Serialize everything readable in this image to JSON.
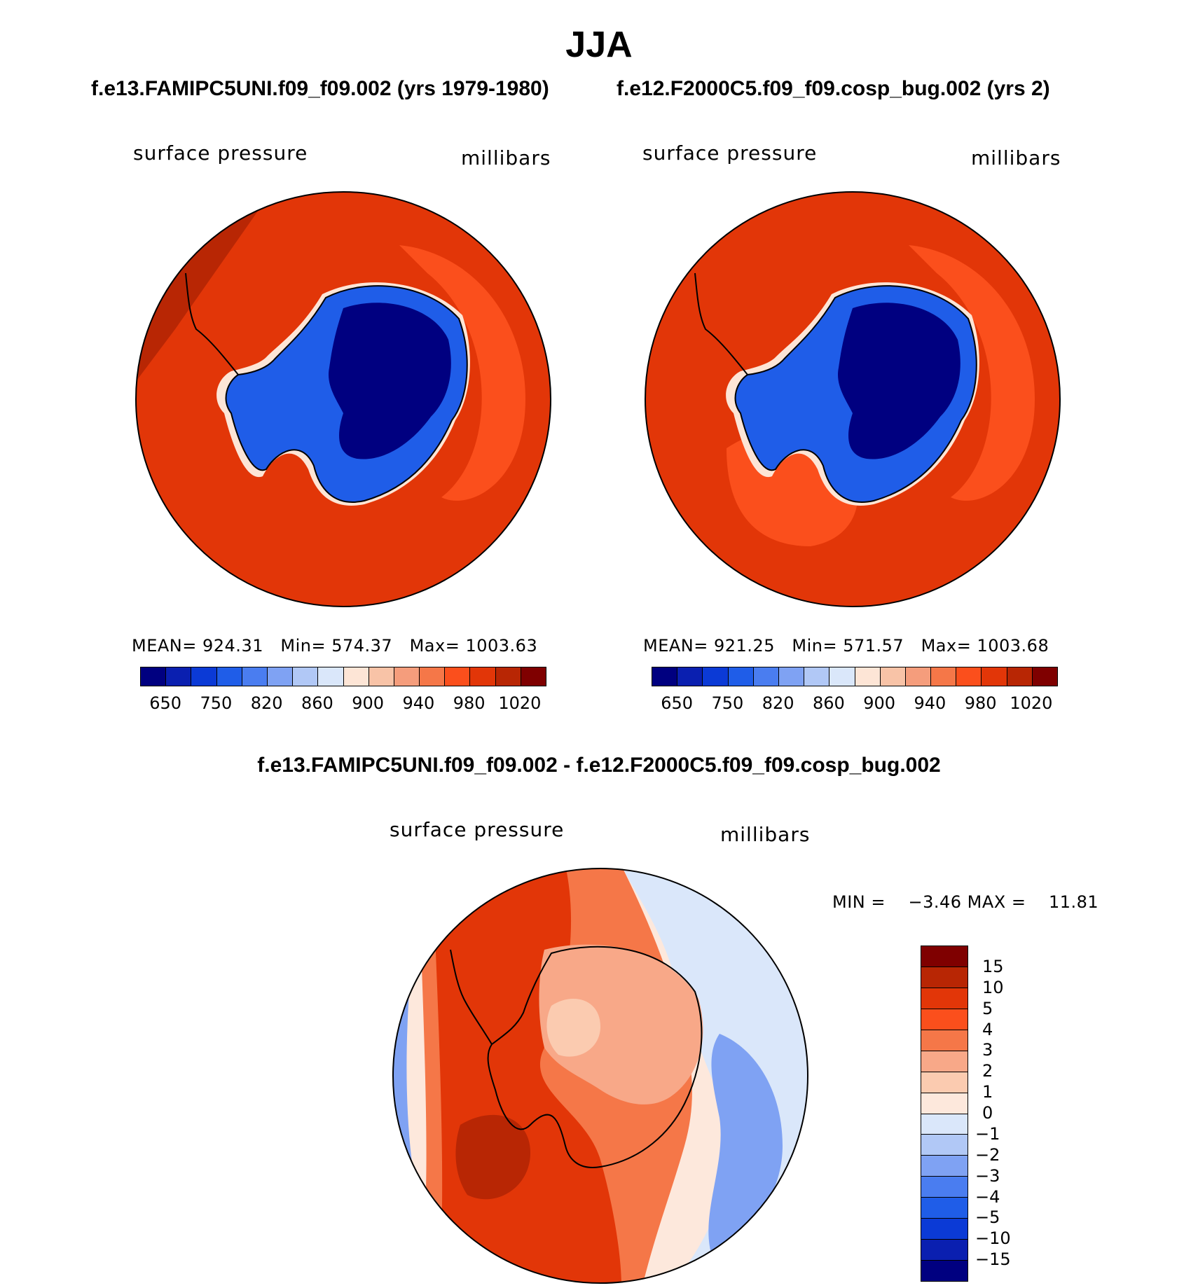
{
  "figure": {
    "title": "JJA",
    "subtitle_left": "f.e13.FAMIPC5UNI.f09_f09.002 (yrs 1979-1980)",
    "subtitle_right": "f.e12.F2000C5.f09_f09.cosp_bug.002 (yrs 2)",
    "diff_title": "f.e13.FAMIPC5UNI.f09_f09.002 - f.e12.F2000C5.f09_f09.cosp_bug.002"
  },
  "panels": [
    {
      "variable": "surface pressure",
      "units": "millibars",
      "stats": {
        "mean_label": "MEAN=",
        "mean": "924.31",
        "min_label": "Min=",
        "min": "574.37",
        "max_label": "Max=",
        "max": "1003.63"
      }
    },
    {
      "variable": "surface pressure",
      "units": "millibars",
      "stats": {
        "mean_label": "MEAN=",
        "mean": "921.25",
        "min_label": "Min=",
        "min": "571.57",
        "max_label": "Max=",
        "max": "1003.68"
      }
    }
  ],
  "diff_panel": {
    "variable": "surface pressure",
    "units": "millibars",
    "stats_text": "MIN =    −3.46 MAX =    11.81"
  },
  "colorbar_abs": {
    "colors": [
      "#000080",
      "#0a1fb0",
      "#0b3ad6",
      "#1f5de8",
      "#4a7df0",
      "#7fa2f3",
      "#b1c8f6",
      "#dae7fa",
      "#fde5d6",
      "#f8c3a7",
      "#f59d7c",
      "#f57748",
      "#fb4f1c",
      "#e23608",
      "#b82604",
      "#7f0000"
    ],
    "tick_labels": [
      "650",
      "750",
      "820",
      "860",
      "900",
      "940",
      "980",
      "1020"
    ]
  },
  "colorbar_diff": {
    "colors": [
      "#7f0000",
      "#b82604",
      "#e23608",
      "#fb4f1c",
      "#f57748",
      "#f8a888",
      "#fbcbb0",
      "#fde8dc",
      "#dae7fa",
      "#b1c8f6",
      "#7fa2f3",
      "#4a7df0",
      "#1f5de8",
      "#0b3ad6",
      "#0a1fb0",
      "#000080"
    ],
    "tick_labels": [
      "15",
      "10",
      "5",
      "4",
      "3",
      "2",
      "1",
      "0",
      "−1",
      "−2",
      "−3",
      "−4",
      "−5",
      "−10",
      "−15"
    ]
  }
}
